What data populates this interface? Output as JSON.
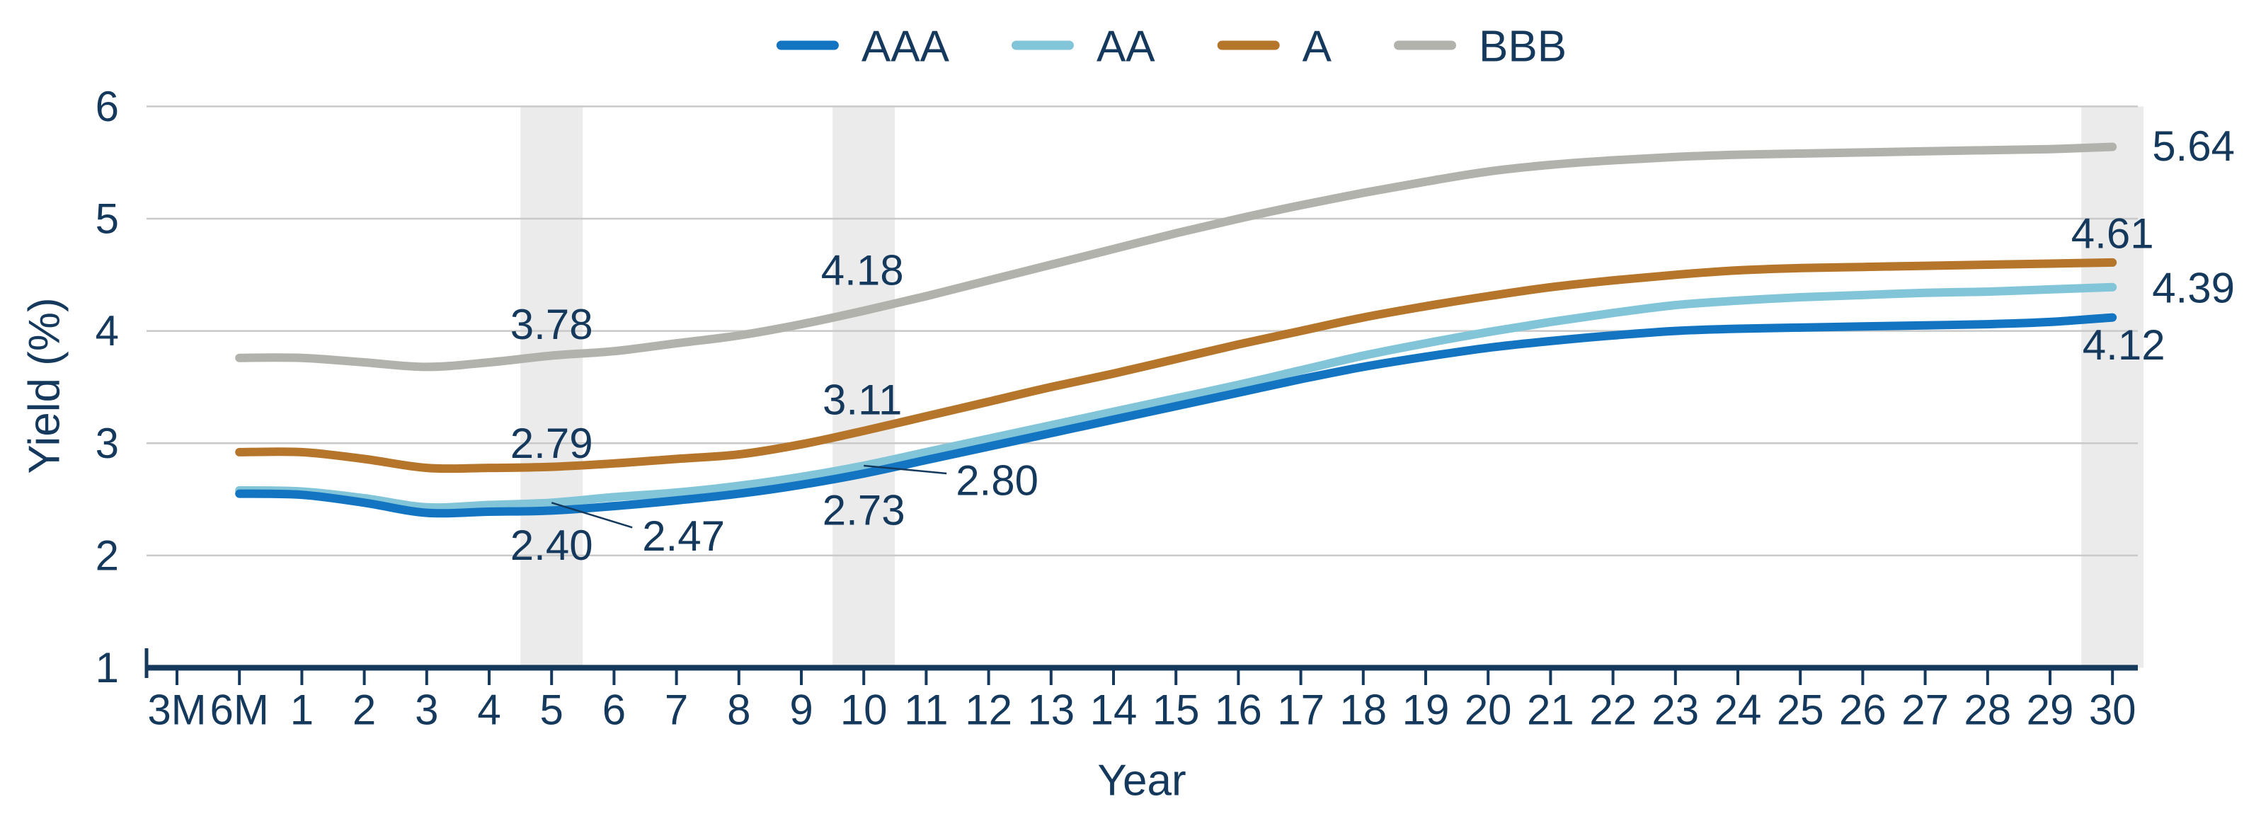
{
  "chart_data": {
    "type": "line",
    "title": "",
    "xlabel": "Year",
    "ylabel": "Yield (%)",
    "ylim": [
      1,
      6
    ],
    "yticks": [
      1,
      2,
      3,
      4,
      5,
      6
    ],
    "grid": true,
    "legend_position": "top",
    "categories": [
      "3M",
      "6M",
      "1",
      "2",
      "3",
      "4",
      "5",
      "6",
      "7",
      "8",
      "9",
      "10",
      "11",
      "12",
      "13",
      "14",
      "15",
      "16",
      "17",
      "18",
      "19",
      "20",
      "21",
      "22",
      "23",
      "24",
      "25",
      "26",
      "27",
      "28",
      "29",
      "30"
    ],
    "series": [
      {
        "name": "AAA",
        "color": "#1375C1",
        "values": [
          null,
          2.55,
          2.54,
          2.47,
          2.38,
          2.39,
          2.4,
          2.44,
          2.49,
          2.55,
          2.63,
          2.73,
          2.85,
          2.97,
          3.09,
          3.21,
          3.33,
          3.45,
          3.57,
          3.68,
          3.77,
          3.85,
          3.91,
          3.96,
          4.0,
          4.02,
          4.03,
          4.04,
          4.05,
          4.06,
          4.08,
          4.12
        ]
      },
      {
        "name": "AA",
        "color": "#82C5D8",
        "values": [
          null,
          2.58,
          2.57,
          2.51,
          2.43,
          2.45,
          2.47,
          2.52,
          2.56,
          2.62,
          2.7,
          2.8,
          2.92,
          3.04,
          3.16,
          3.28,
          3.4,
          3.52,
          3.65,
          3.78,
          3.89,
          3.99,
          4.08,
          4.16,
          4.23,
          4.27,
          4.3,
          4.32,
          4.34,
          4.35,
          4.37,
          4.39
        ]
      },
      {
        "name": "A",
        "color": "#B5752A",
        "values": [
          null,
          2.92,
          2.92,
          2.86,
          2.78,
          2.78,
          2.79,
          2.82,
          2.86,
          2.9,
          2.99,
          3.11,
          3.24,
          3.37,
          3.5,
          3.62,
          3.75,
          3.88,
          4.0,
          4.12,
          4.22,
          4.31,
          4.39,
          4.45,
          4.5,
          4.54,
          4.56,
          4.57,
          4.58,
          4.59,
          4.6,
          4.61
        ]
      },
      {
        "name": "BBB",
        "color": "#B2B2AC",
        "values": [
          null,
          3.76,
          3.76,
          3.72,
          3.68,
          3.72,
          3.78,
          3.82,
          3.89,
          3.96,
          4.06,
          4.18,
          4.31,
          4.45,
          4.59,
          4.73,
          4.87,
          5.0,
          5.12,
          5.23,
          5.33,
          5.42,
          5.48,
          5.52,
          5.55,
          5.57,
          5.58,
          5.59,
          5.6,
          5.61,
          5.62,
          5.64
        ]
      }
    ],
    "highlight_bands": {
      "color": "#EBEBEB",
      "categories": [
        "5",
        "10",
        "30"
      ]
    },
    "annotations": [
      {
        "series": "BBB",
        "category": "5",
        "text": "3.78"
      },
      {
        "series": "A",
        "category": "5",
        "text": "2.79"
      },
      {
        "series": "AAA",
        "category": "5",
        "text": "2.40"
      },
      {
        "series": "AA",
        "category": "5",
        "text": "2.47"
      },
      {
        "series": "BBB",
        "category": "10",
        "text": "4.18"
      },
      {
        "series": "A",
        "category": "10",
        "text": "3.11"
      },
      {
        "series": "AAA",
        "category": "10",
        "text": "2.73"
      },
      {
        "series": "AA",
        "category": "10",
        "text": "2.80"
      },
      {
        "series": "BBB",
        "category": "30",
        "text": "5.64"
      },
      {
        "series": "A",
        "category": "30",
        "text": "4.61"
      },
      {
        "series": "AA",
        "category": "30",
        "text": "4.39"
      },
      {
        "series": "AAA",
        "category": "30",
        "text": "4.12"
      }
    ]
  },
  "colors": {
    "text_navy": "#14395C",
    "gridline": "#C9C9C9",
    "band": "#EBEBEB",
    "background": "#FFFFFF"
  }
}
